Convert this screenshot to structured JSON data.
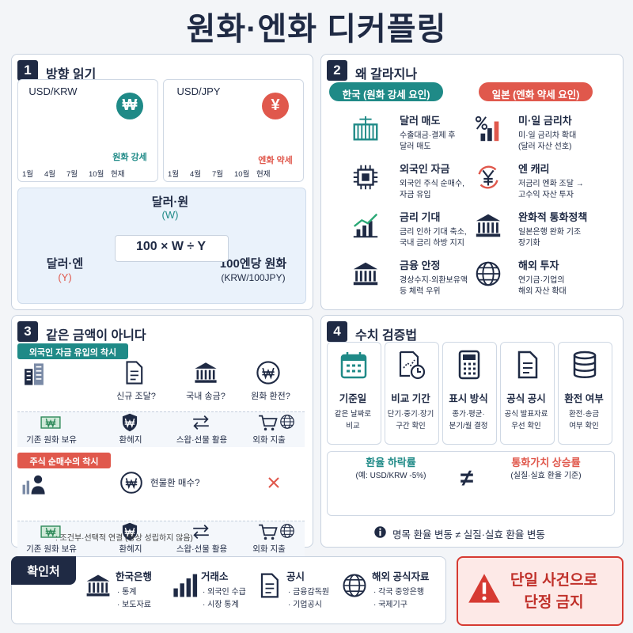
{
  "title": "원화·엔화 디커플링",
  "direction": {
    "number": "1",
    "title": "방향 읽기",
    "charts": [
      {
        "pair": "USD/KRW",
        "symbol": "₩",
        "label": "원화 강세",
        "months": [
          "1월",
          "4월",
          "7월",
          "10월",
          "현재"
        ]
      },
      {
        "pair": "USD/JPY",
        "symbol": "¥",
        "label": "엔화 약세",
        "months": [
          "1월",
          "4월",
          "7월",
          "10월",
          "현재"
        ]
      }
    ],
    "triangle": {
      "top": {
        "name": "달러·원",
        "code": "(W)"
      },
      "left": {
        "name": "달러·엔",
        "code": "(Y)"
      },
      "right": {
        "name": "100엔당 원화",
        "code": "(KRW/100JPY)"
      },
      "formula": "100 × W ÷ Y"
    }
  },
  "divergence": {
    "number": "2",
    "title": "왜 갈라지나",
    "sides": [
      {
        "header": "한국 (원화 강세 요인)",
        "items": [
          {
            "title": "달러 매도",
            "lines": [
              "수출대금·결제 후",
              "달러 매도"
            ]
          },
          {
            "title": "외국인 자금",
            "lines": [
              "외국인 주식 순매수,",
              "자금 유입"
            ]
          },
          {
            "title": "금리 기대",
            "lines": [
              "금리 인하 기대 축소,",
              "국내 금리 하방 지지"
            ]
          },
          {
            "title": "금융 안정",
            "lines": [
              "경상수지·외환보유액",
              "등 체력 우위"
            ]
          }
        ]
      },
      {
        "header": "일본 (엔화 약세 요인)",
        "items": [
          {
            "title": "미·일 금리차",
            "lines": [
              "미·일 금리차 확대",
              "(달러 자산 선호)"
            ]
          },
          {
            "title": "엔 캐리",
            "lines": [
              "저금리 엔화 조달 →",
              "고수익 자산 투자"
            ]
          },
          {
            "title": "완화적 통화정책",
            "lines": [
              "일본은행 완화 기조",
              "장기화"
            ]
          },
          {
            "title": "해외 투자",
            "lines": [
              "연기금·기업의",
              "해외 자산 확대"
            ]
          }
        ]
      }
    ]
  },
  "illusion": {
    "number": "3",
    "title": "같은 금액이 아니다",
    "cases": [
      {
        "tag": "외국인 자금 유입의 착시",
        "steps": [
          "신규 조달?",
          "국내 송금?",
          "원화 환전?"
        ],
        "outcomes": [
          "기존 원화 보유",
          "환헤지",
          "스왑·선물 활용",
          "외화 지출"
        ]
      },
      {
        "tag": "주식 순매수의 착시",
        "steps": [
          "현물환 매수?"
        ],
        "outcomes": [
          "기존 원화 보유",
          "환헤지",
          "스왑·선물 활용",
          "외화 지출"
        ]
      }
    ],
    "legend": ": 조건부·선택적 연결 (항상 성립하지 않음)"
  },
  "verification": {
    "number": "4",
    "title": "수치 검증법",
    "cards": [
      {
        "title": "기준일",
        "lines": [
          "같은 날짜로",
          "비교"
        ]
      },
      {
        "title": "비교 기간",
        "lines": [
          "단기·중기·장기",
          "구간 확인"
        ]
      },
      {
        "title": "표시 방식",
        "lines": [
          "종가·평균·",
          "분기/월 결정"
        ]
      },
      {
        "title": "공식 공시",
        "lines": [
          "공식 발표자료",
          "우선 확인"
        ]
      },
      {
        "title": "환전 여부",
        "lines": [
          "환전·송금",
          "여부 확인"
        ]
      }
    ],
    "comparison": {
      "left": {
        "title": "환율 하락률",
        "note": "(예: USD/KRW -5%)"
      },
      "sign": "≠",
      "right": {
        "title": "통화가치 상승률",
        "note": "(실질·실효 환율 기준)"
      }
    },
    "note": "명목 환율 변동 ≠ 실질·실효 환율 변동"
  },
  "sources": {
    "title": "확인처",
    "items": [
      {
        "name": "한국은행",
        "details": [
          "· 통계",
          "· 보도자료"
        ]
      },
      {
        "name": "거래소",
        "details": [
          "· 외국인 수급",
          "· 시장 통계"
        ]
      },
      {
        "name": "공시",
        "details": [
          "· 금융감독원",
          "· 기업공시"
        ]
      },
      {
        "name": "해외 공식자료",
        "details": [
          "· 각국 중앙은행",
          "· 국제기구"
        ]
      }
    ]
  },
  "warning": {
    "lines": [
      "단일 사건으로",
      "단정 금지"
    ]
  }
}
